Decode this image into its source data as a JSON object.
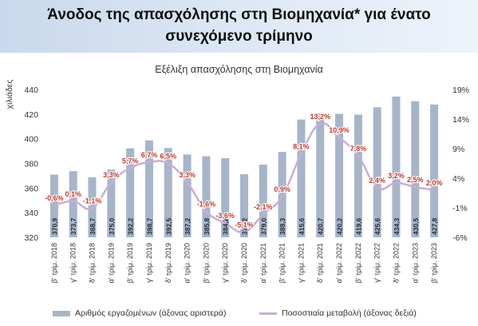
{
  "header": {
    "title_line1": "Άνοδος της απασχόλησης στη Βιομηχανία* για ένατο",
    "title_line2": "συνεχόμενο τρίμηνο"
  },
  "chart_data": {
    "type": "bar",
    "title": "Εξέλιξη απασχόλησης στη Βιομηχανία",
    "ylabel": "χιλιάδες",
    "categories": [
      "β' τρίμ. 2018",
      "γ' τρίμ. 2018",
      "δ' τρίμ. 2018",
      "α' τρίμ. 2019",
      "β' τρίμ. 2019",
      "γ' τρίμ. 2019",
      "δ' τρίμ. 2019",
      "α' τρίμ. 2020",
      "β' τρίμ. 2020",
      "γ' τρίμ. 2020",
      "δ' τρίμ. 2020",
      "α' τρίμ. 2021",
      "β' τρίμ. 2021",
      "γ' τρίμ. 2021",
      "δ' τρίμ. 2021",
      "α' τρίμ. 2022",
      "β' τρίμ. 2022",
      "γ' τρίμ. 2022",
      "δ' τρίμ. 2022",
      "α' τρίμ. 2023",
      "β' τρίμ. 2023"
    ],
    "series": [
      {
        "name": "Αριθμός εργαζομένων (άξονας αριστερά)",
        "type": "bar",
        "axis": "left",
        "values": [
          370.9,
          373.7,
          368.7,
          375.0,
          392.2,
          398.7,
          392.5,
          387.2,
          385.8,
          384.2,
          371.2,
          379.0,
          389.3,
          415.6,
          420.7,
          420.2,
          419.6,
          425.6,
          434.3,
          430.5,
          427.8
        ],
        "labels": [
          "370,9",
          "373,7",
          "368,7",
          "375,0",
          "392,2",
          "398,7",
          "392,5",
          "387,2",
          "385,8",
          "384,2",
          "371,2",
          "379,0",
          "389,3",
          "415,6",
          "420,7",
          "420,2",
          "419,6",
          "425,6",
          "434,3",
          "430,5",
          "427,8"
        ]
      },
      {
        "name": "Ποσοστιαία μεταβολή (άξονας δεξιά)",
        "type": "line",
        "axis": "right",
        "values": [
          -0.6,
          0.1,
          -1.1,
          3.3,
          5.7,
          6.7,
          6.5,
          3.3,
          -1.6,
          -3.6,
          -5.1,
          -2.1,
          0.9,
          8.1,
          13.2,
          10.9,
          7.8,
          2.4,
          3.2,
          2.5,
          2.0
        ],
        "labels": [
          "-0,6%",
          "0,1%",
          "-1,1%",
          "3,3%",
          "5,7%",
          "6,7%",
          "6,5%",
          "3,3%",
          "-1,6%",
          "-3,6%",
          "-5,1%",
          "-2,1%",
          "0,9%",
          "8,1%",
          "13,2%",
          "10,9%",
          "7,8%",
          "2,4%",
          "3,2%",
          "2,5%",
          "2,0%"
        ]
      }
    ],
    "y_left": {
      "min": 320,
      "max": 440,
      "ticks": [
        "320",
        "340",
        "360",
        "380",
        "400",
        "420",
        "440"
      ]
    },
    "y_right": {
      "min": -6,
      "max": 19,
      "ticks": [
        "-6%",
        "-1%",
        "4%",
        "9%",
        "14%",
        "19%"
      ]
    },
    "legend_position": "bottom",
    "grid": false,
    "colors": {
      "bars": "#a6b5c9",
      "line": "#c9aed3",
      "bar_label": "#1f2d3d",
      "line_label": "#c0392b"
    }
  }
}
